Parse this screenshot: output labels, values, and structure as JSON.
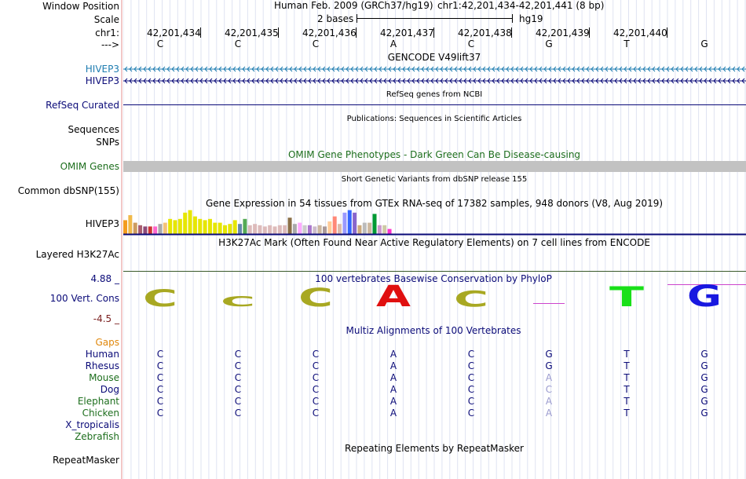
{
  "header": {
    "window_position_label": "Window Position",
    "scale_label": "Scale",
    "chrom_label": "chr1:",
    "strand_label": "--->",
    "assembly_text": "Human Feb. 2009 (GRCh37/hg19)",
    "position_text": "chr1:42,201,434-42,201,441 (8 bp)",
    "scale_text": "2 bases",
    "scale_db": "hg19",
    "coords": [
      "42,201,434",
      "42,201,435",
      "42,201,436",
      "42,201,437",
      "42,201,438",
      "42,201,439",
      "42,201,440"
    ],
    "bases": [
      "C",
      "C",
      "C",
      "A",
      "C",
      "G",
      "T",
      "G"
    ]
  },
  "tracks": {
    "gencode": {
      "title": "GENCODE V49lift37",
      "genes": [
        "HIVEP3",
        "HIVEP3"
      ]
    },
    "refseq": {
      "label": "RefSeq Curated",
      "title": "RefSeq genes from NCBI"
    },
    "publications": {
      "label": "Sequences",
      "title": "Publications: Sequences in Scientific Articles"
    },
    "snps": {
      "label": "SNPs"
    },
    "omim": {
      "label": "OMIM Genes",
      "title": "OMIM Gene Phenotypes - Dark Green Can Be Disease-causing"
    },
    "dbsnp": {
      "label": "Common dbSNP(155)",
      "title": "Short Genetic Variants from dbSNP release 155"
    },
    "gtex": {
      "label": "HIVEP3",
      "title": "Gene Expression in 54 tissues from GTEx RNA-seq of 17382 samples, 948 donors (V8, Aug 2019)",
      "colors": [
        "#f39c1f",
        "#f0b94a",
        "#cd9b5f",
        "#a95d6e",
        "#8c4a79",
        "#cc3333",
        "#ff66cc",
        "#aaaaaa",
        "#f3c27a",
        "#e6e600",
        "#e6e600",
        "#e6e600",
        "#e6e600",
        "#e6e600",
        "#e6e600",
        "#e6e600",
        "#e6e600",
        "#e6e600",
        "#e6e600",
        "#e6e600",
        "#e6e600",
        "#e6e600",
        "#e6e600",
        "#6688aa",
        "#55aa55",
        "#ddbbbb",
        "#ddbbbb",
        "#ddbbbb",
        "#ddbbbb",
        "#ddbbbb",
        "#ddbbbb",
        "#ddbbbb",
        "#ddbbbb",
        "#8b6f47",
        "#aaaaaa",
        "#ffaaff",
        "#cccccc",
        "#aa77cc",
        "#ccbbcc",
        "#cdb79e",
        "#aa9999",
        "#ffcc99",
        "#ff8877",
        "#ddbbaa",
        "#9999ff",
        "#3366ff",
        "#8866cc",
        "#cdaa7d",
        "#bbbbbb",
        "#cdb79e",
        "#009933",
        "#cc99cc",
        "#cdc9a5",
        "#ff33cc"
      ],
      "values": [
        0.55,
        0.75,
        0.45,
        0.35,
        0.3,
        0.3,
        0.3,
        0.4,
        0.45,
        0.6,
        0.55,
        0.6,
        0.85,
        0.95,
        0.7,
        0.6,
        0.55,
        0.6,
        0.45,
        0.45,
        0.35,
        0.4,
        0.55,
        0.4,
        0.6,
        0.35,
        0.4,
        0.35,
        0.3,
        0.35,
        0.3,
        0.35,
        0.35,
        0.65,
        0.4,
        0.45,
        0.35,
        0.35,
        0.3,
        0.35,
        0.3,
        0.5,
        0.7,
        0.4,
        0.85,
        0.95,
        0.85,
        0.35,
        0.45,
        0.45,
        0.8,
        0.35,
        0.35,
        0.2
      ]
    },
    "h3k27ac": {
      "label": "Layered H3K27Ac",
      "title": "H3K27Ac Mark (Often Found Near Active Regulatory Elements) on 7 cell lines from ENCODE"
    },
    "cons": {
      "label": "100 Vert. Cons",
      "title": "100 vertebrates Basewise Conservation by PhyloP",
      "ymax": "4.88 _",
      "ymin": "-4.5 _",
      "logo": [
        "C",
        "C",
        "C",
        "A",
        "C",
        "",
        "T",
        "G"
      ],
      "logo_colors": [
        "#a8a822",
        "#a8a822",
        "#a8a822",
        "#e01010",
        "#a8a822",
        "#cc44cc",
        "#19e019",
        "#1818e0"
      ],
      "logo_heights": [
        0.6,
        0.35,
        0.65,
        0.75,
        0.55,
        0.05,
        0.7,
        0.75
      ]
    },
    "multiz": {
      "title": "Multiz Alignments of 100 Vertebrates",
      "gaps_label": "Gaps",
      "species": [
        {
          "name": "Human",
          "bases": [
            "C",
            "C",
            "C",
            "A",
            "C",
            "G",
            "T",
            "G"
          ],
          "faded": [
            false,
            false,
            false,
            false,
            false,
            false,
            false,
            false
          ]
        },
        {
          "name": "Rhesus",
          "bases": [
            "C",
            "C",
            "C",
            "A",
            "C",
            "G",
            "T",
            "G"
          ],
          "faded": [
            false,
            false,
            false,
            false,
            false,
            false,
            false,
            false
          ]
        },
        {
          "name": "Mouse",
          "bases": [
            "C",
            "C",
            "C",
            "A",
            "C",
            "A",
            "T",
            "G"
          ],
          "faded": [
            false,
            false,
            false,
            false,
            false,
            true,
            false,
            false
          ]
        },
        {
          "name": "Dog",
          "bases": [
            "C",
            "C",
            "C",
            "A",
            "C",
            "C",
            "T",
            "G"
          ],
          "faded": [
            false,
            false,
            false,
            false,
            false,
            true,
            false,
            false
          ]
        },
        {
          "name": "Elephant",
          "bases": [
            "C",
            "C",
            "C",
            "A",
            "C",
            "A",
            "T",
            "G"
          ],
          "faded": [
            false,
            false,
            false,
            false,
            false,
            true,
            false,
            false
          ]
        },
        {
          "name": "Chicken",
          "bases": [
            "C",
            "C",
            "C",
            "A",
            "C",
            "A",
            "T",
            "G"
          ],
          "faded": [
            false,
            false,
            false,
            false,
            false,
            true,
            false,
            false
          ]
        },
        {
          "name": "X_tropicalis",
          "bases": [],
          "faded": []
        },
        {
          "name": "Zebrafish",
          "bases": [],
          "faded": []
        }
      ]
    },
    "repeatmasker": {
      "label": "RepeatMasker",
      "title": "Repeating Elements by RepeatMasker"
    }
  }
}
